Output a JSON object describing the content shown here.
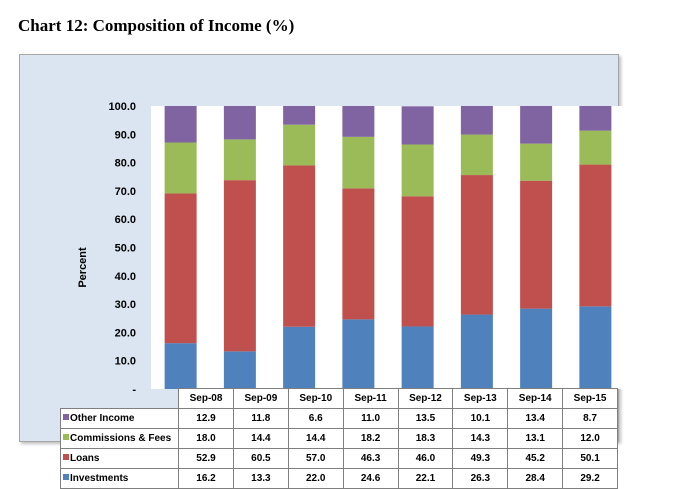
{
  "page_title": "Chart 12:  Composition of Income (%)",
  "chart_data": {
    "type": "bar",
    "stacked": true,
    "title": "",
    "xlabel": "",
    "ylabel": "Percent",
    "ylim": [
      0,
      100
    ],
    "yticks": [
      "-",
      "10.0",
      "20.0",
      "30.0",
      "40.0",
      "50.0",
      "60.0",
      "70.0",
      "80.0",
      "90.0",
      "100.0"
    ],
    "categories": [
      "Sep-08",
      "Sep-09",
      "Sep-10",
      "Sep-11",
      "Sep-12",
      "Sep-13",
      "Sep-14",
      "Sep-15"
    ],
    "series": [
      {
        "name": "Investments",
        "color": "#4f81bd",
        "values": [
          16.2,
          13.3,
          22.0,
          24.6,
          22.1,
          26.3,
          28.4,
          29.2
        ]
      },
      {
        "name": "Loans",
        "color": "#c0504d",
        "values": [
          52.9,
          60.5,
          57.0,
          46.3,
          46.0,
          49.3,
          45.2,
          50.1
        ]
      },
      {
        "name": "Commissions & Fees",
        "color": "#9bbb59",
        "values": [
          18.0,
          14.4,
          14.4,
          18.2,
          18.3,
          14.3,
          13.1,
          12.0
        ]
      },
      {
        "name": "Other Income",
        "color": "#8064a2",
        "values": [
          12.9,
          11.8,
          6.6,
          11.0,
          13.5,
          10.1,
          13.4,
          8.7
        ]
      }
    ],
    "table_rows": [
      {
        "name": "Other Income",
        "color": "#8064a2",
        "values": [
          "12.9",
          "11.8",
          "6.6",
          "11.0",
          "13.5",
          "10.1",
          "13.4",
          "8.7"
        ]
      },
      {
        "name": "Commissions & Fees",
        "color": "#9bbb59",
        "values": [
          "18.0",
          "14.4",
          "14.4",
          "18.2",
          "18.3",
          "14.3",
          "13.1",
          "12.0"
        ]
      },
      {
        "name": "Loans",
        "color": "#c0504d",
        "values": [
          "52.9",
          "60.5",
          "57.0",
          "46.3",
          "46.0",
          "49.3",
          "45.2",
          "50.1"
        ]
      },
      {
        "name": "Investments",
        "color": "#4f81bd",
        "values": [
          "16.2",
          "13.3",
          "22.0",
          "24.6",
          "22.1",
          "26.3",
          "28.4",
          "29.2"
        ]
      }
    ]
  }
}
